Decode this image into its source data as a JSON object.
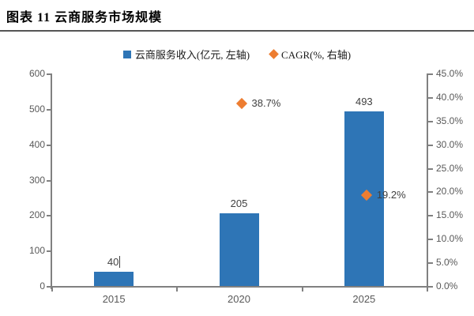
{
  "header": {
    "title": "图表 11 云商服务市场规模"
  },
  "legend": [
    {
      "label": "云商服务收入(亿元, 左轴)",
      "marker": "square",
      "color": "#2E75B6"
    },
    {
      "label": "CAGR(%, 右轴)",
      "marker": "diamond",
      "color": "#ED7D31"
    }
  ],
  "chart_data": {
    "type": "bar",
    "title": "图表 11 云商服务市场规模",
    "categories": [
      "2015",
      "2020",
      "2025"
    ],
    "series": [
      {
        "name": "云商服务收入(亿元, 左轴)",
        "type": "bar",
        "axis": "left",
        "color": "#2E75B6",
        "values": [
          40,
          205,
          493
        ],
        "labels": [
          "40",
          "205",
          "493"
        ],
        "label_caret_index": 0
      },
      {
        "name": "CAGR(%, 右轴)",
        "type": "scatter",
        "axis": "right",
        "color": "#ED7D31",
        "values": [
          null,
          38.7,
          19.2
        ],
        "labels": [
          null,
          "38.7%",
          "19.2%"
        ]
      }
    ],
    "left_axis": {
      "min": 0,
      "max": 600,
      "step": 100,
      "ticks": [
        "0",
        "100",
        "200",
        "300",
        "400",
        "500",
        "600"
      ]
    },
    "right_axis": {
      "min": 0,
      "max": 45,
      "step": 5,
      "ticks": [
        "0.0%",
        "5.0%",
        "10.0%",
        "15.0%",
        "20.0%",
        "25.0%",
        "30.0%",
        "35.0%",
        "40.0%",
        "45.0%"
      ]
    },
    "grid": false,
    "legend_position": "top",
    "axis_color": "#808080",
    "tick_label_color": "#595959",
    "data_label_color": "#404040"
  }
}
